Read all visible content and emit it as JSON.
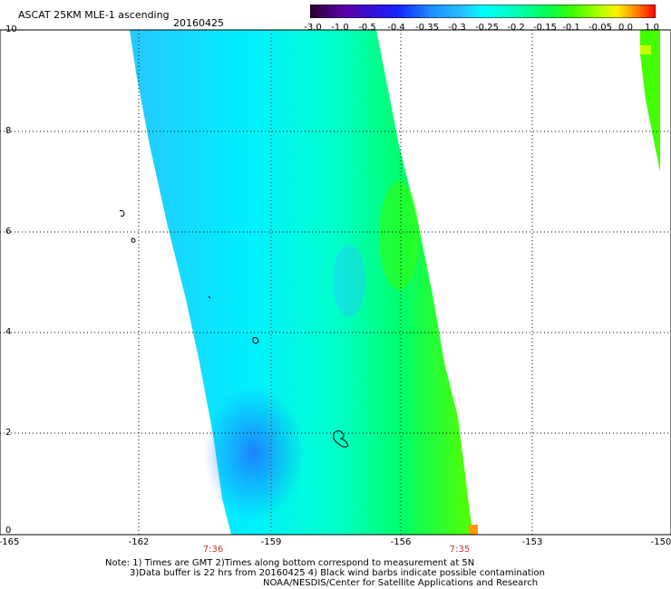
{
  "header": {
    "title": "ASCAT 25KM MLE-1 ascending",
    "date": "20160425"
  },
  "colorbar": {
    "labels": [
      "-3.0",
      "-1.0",
      "-0.5",
      "-0.4",
      "-0.35",
      "-0.3",
      "-0.25",
      "-0.2",
      "-0.15",
      "-0.1",
      "-0.05",
      "0.0",
      "1.0"
    ],
    "colors": [
      "#2a002e",
      "#5a00a8",
      "#1420ff",
      "#1e8cff",
      "#25c8ff",
      "#00ffff",
      "#00ffb4",
      "#00ff5a",
      "#3cff00",
      "#b4ff00",
      "#ffee00",
      "#ff8c00",
      "#ff0000"
    ]
  },
  "map": {
    "y_ticks": [
      "10",
      "8",
      "6",
      "4",
      "2",
      "0"
    ],
    "x_ticks": [
      "-165",
      "-162",
      "-159",
      "-156",
      "-153",
      "-150"
    ],
    "times": [
      "7:36",
      "7:35"
    ],
    "lat_range": [
      0,
      10
    ],
    "lon_range": [
      -165,
      -150
    ]
  },
  "notes": {
    "line1": "Note: 1) Times are GMT 2)Times along bottom correspond to measurement at 5N",
    "line2": "3)Data buffer is 22 hrs from 20160425 4) Black wind barbs indicate possible contamination",
    "line3": "NOAA/NESDIS/Center for Satellite Applications and Research"
  }
}
